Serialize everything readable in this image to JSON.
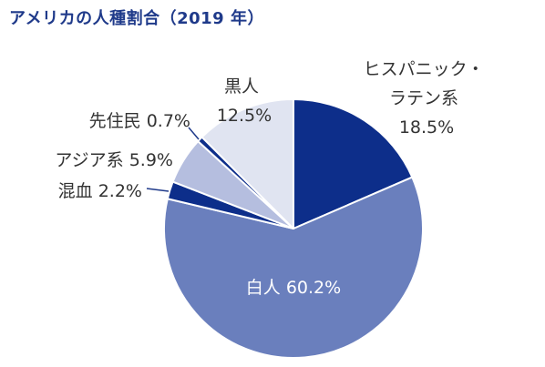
{
  "title": "アメリカの人種割合（2019 年）",
  "chart_data": {
    "type": "pie",
    "title": "アメリカの人種割合（2019 年）",
    "unit": "%",
    "start": "12 o'clock",
    "direction": "clockwise",
    "slices": [
      {
        "key": "hispanic",
        "label_lines": [
          "ヒスパニック・",
          "ラテン系"
        ],
        "value_text": "18.5%",
        "value": 18.5,
        "color": "#0d2e8a"
      },
      {
        "key": "white",
        "label_lines": [
          "白人"
        ],
        "value_text": "60.2%",
        "value": 60.2,
        "color": "#6a7fbd"
      },
      {
        "key": "mixed",
        "label_lines": [
          "混血"
        ],
        "value_text": "2.2%",
        "value": 2.2,
        "color": "#0d2e8a"
      },
      {
        "key": "asian",
        "label_lines": [
          "アジア系"
        ],
        "value_text": "5.9%",
        "value": 5.9,
        "color": "#b5bedf"
      },
      {
        "key": "native",
        "label_lines": [
          "先住民"
        ],
        "value_text": "0.7%",
        "value": 0.7,
        "color": "#0d2e8a"
      },
      {
        "key": "black",
        "label_lines": [
          "黒人"
        ],
        "value_text": "12.5%",
        "value": 12.5,
        "color": "#e0e4f1"
      }
    ]
  }
}
